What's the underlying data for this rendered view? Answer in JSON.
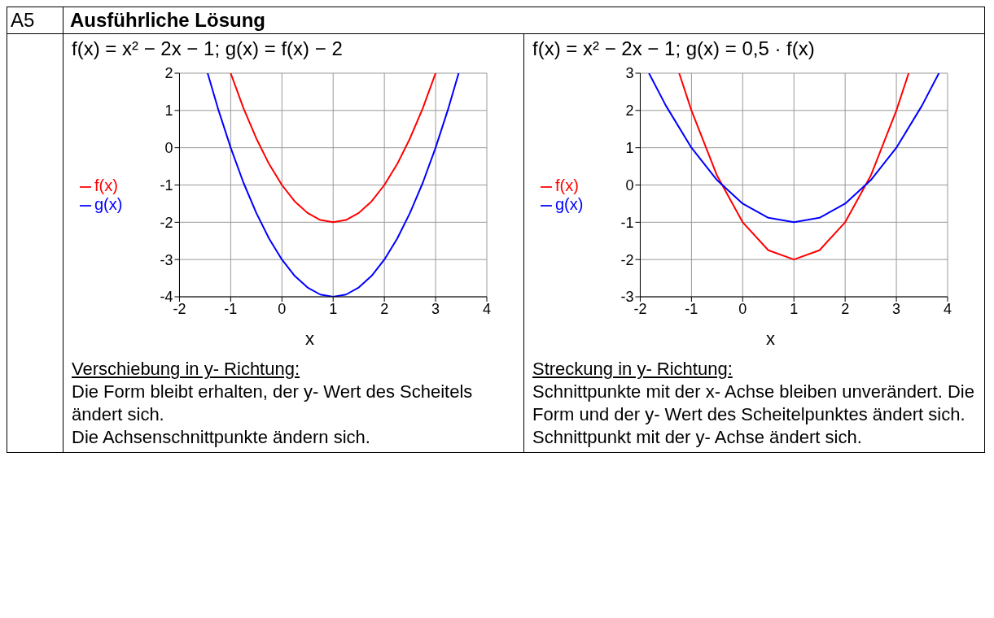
{
  "chart_data": [
    {
      "type": "line",
      "title": "f(x) = x² − 2x − 1; g(x) = f(x) − 2",
      "xlabel": "x",
      "xlim": [
        -2,
        4
      ],
      "xticks": [
        -2,
        -1,
        0,
        1,
        2,
        3,
        4
      ],
      "ylim": [
        -4,
        2
      ],
      "yticks": [
        -4,
        -3,
        -2,
        -1,
        0,
        1,
        2
      ],
      "grid": true,
      "legend": "left",
      "marker": "none",
      "line_style": "solid",
      "series": [
        {
          "name": "f(x)",
          "color": "#ff0000",
          "x": [
            -1,
            -0.75,
            -0.5,
            -0.25,
            0,
            0.25,
            0.5,
            0.75,
            1,
            1.25,
            1.5,
            1.75,
            2,
            2.25,
            2.5,
            2.75,
            3
          ],
          "values": [
            2,
            1.06,
            0.25,
            -0.44,
            -1,
            -1.44,
            -1.75,
            -1.94,
            -2,
            -1.94,
            -1.75,
            -1.44,
            -1,
            -0.44,
            0.25,
            1.06,
            2
          ]
        },
        {
          "name": "g(x)",
          "color": "#0000ff",
          "x": [
            -1.45,
            -1.25,
            -1,
            -0.75,
            -0.5,
            -0.25,
            0,
            0.25,
            0.5,
            0.75,
            1,
            1.25,
            1.5,
            1.75,
            2,
            2.25,
            2.5,
            2.75,
            3,
            3.25,
            3.45
          ],
          "values": [
            2,
            1.06,
            0,
            -0.94,
            -1.75,
            -2.44,
            -3,
            -3.44,
            -3.75,
            -3.94,
            -4,
            -3.94,
            -3.75,
            -3.44,
            -3,
            -2.44,
            -1.75,
            -0.94,
            0,
            1.06,
            2
          ]
        }
      ],
      "annotations": [
        "A5",
        "Ausführliche Lösung",
        "Verschiebung in y- Richtung:",
        "Die Form bleibt erhalten, der y- Wert des Scheitels ändert sich.",
        "Die Achsenschnittpunkte ändern sich."
      ]
    },
    {
      "type": "line",
      "title": "f(x) = x² − 2x − 1; g(x) = 0,5 · f(x)",
      "xlabel": "x",
      "xlim": [
        -2,
        4
      ],
      "xticks": [
        -2,
        -1,
        0,
        1,
        2,
        3,
        4
      ],
      "ylim": [
        -3,
        3
      ],
      "yticks": [
        -3,
        -2,
        -1,
        0,
        1,
        2,
        3
      ],
      "grid": true,
      "legend": "left",
      "marker": "none",
      "line_style": "solid",
      "series": [
        {
          "name": "f(x)",
          "color": "#ff0000",
          "x": [
            -1.24,
            -1,
            -0.5,
            0,
            0.5,
            1,
            1.5,
            2,
            2.5,
            3,
            3.24
          ],
          "values": [
            3,
            2,
            0.25,
            -1,
            -1.75,
            -2,
            -1.75,
            -1,
            0.25,
            2,
            3
          ]
        },
        {
          "name": "g(x)",
          "color": "#0000ff",
          "x": [
            -1.83,
            -1.5,
            -1,
            -0.5,
            0,
            0.5,
            1,
            1.5,
            2,
            2.5,
            3,
            3.5,
            3.83
          ],
          "values": [
            3,
            2.13,
            1,
            0.13,
            -0.5,
            -0.88,
            -1,
            -0.88,
            -0.5,
            0.13,
            1,
            2.13,
            3
          ]
        }
      ],
      "annotations": [
        "Streckung in y- Richtung:",
        "Schnittpunkte mit der x- Achse bleiben unverändert. Die Form und der y- Wert des Scheitelpunktes ändert sich. Schnittpunkt mit der y- Achse ändert sich."
      ]
    }
  ]
}
